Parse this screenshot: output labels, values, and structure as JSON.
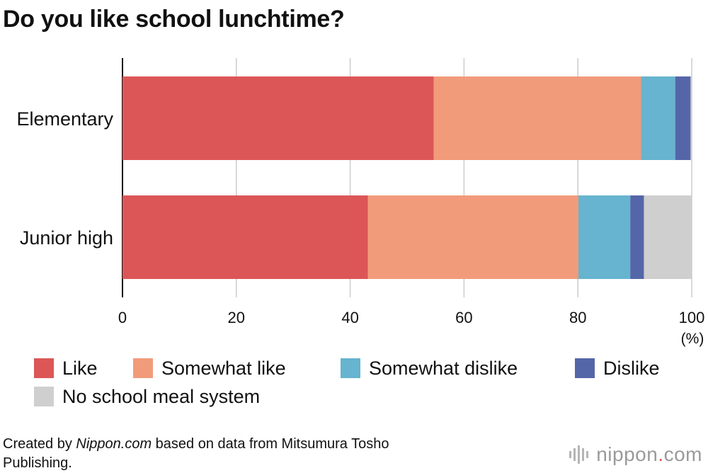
{
  "title": "Do you like school lunchtime?",
  "chart_data": {
    "type": "bar",
    "orientation": "horizontal",
    "stacked": true,
    "title": "Do you like school lunchtime?",
    "categories": [
      "Elementary",
      "Junior high"
    ],
    "series": [
      {
        "name": "Like",
        "color": "#dc5657",
        "values": [
          54.7,
          43.1
        ]
      },
      {
        "name": "Somewhat like",
        "color": "#f19b7b",
        "values": [
          36.4,
          37.0
        ]
      },
      {
        "name": "Somewhat dislike",
        "color": "#66b4cf",
        "values": [
          6.0,
          9.1
        ]
      },
      {
        "name": "Dislike",
        "color": "#5566a8",
        "values": [
          2.7,
          2.4
        ]
      },
      {
        "name": "No school meal system",
        "color": "#cfcfcf",
        "values": [
          0.2,
          8.4
        ]
      }
    ],
    "xlim": [
      0,
      100
    ],
    "xticks": [
      "0",
      "20",
      "40",
      "60",
      "80",
      "100"
    ],
    "xunit": "(%)",
    "grid": true,
    "legend_position": "bottom"
  },
  "footer": {
    "prefix": "Created by ",
    "source_name": "Nippon.com",
    "suffix": " based on data from Mitsumura Tosho Publishing."
  },
  "brand": {
    "name": "nippon",
    "dot": ".",
    "tld": "com",
    "dot_color": "#dc5657"
  }
}
